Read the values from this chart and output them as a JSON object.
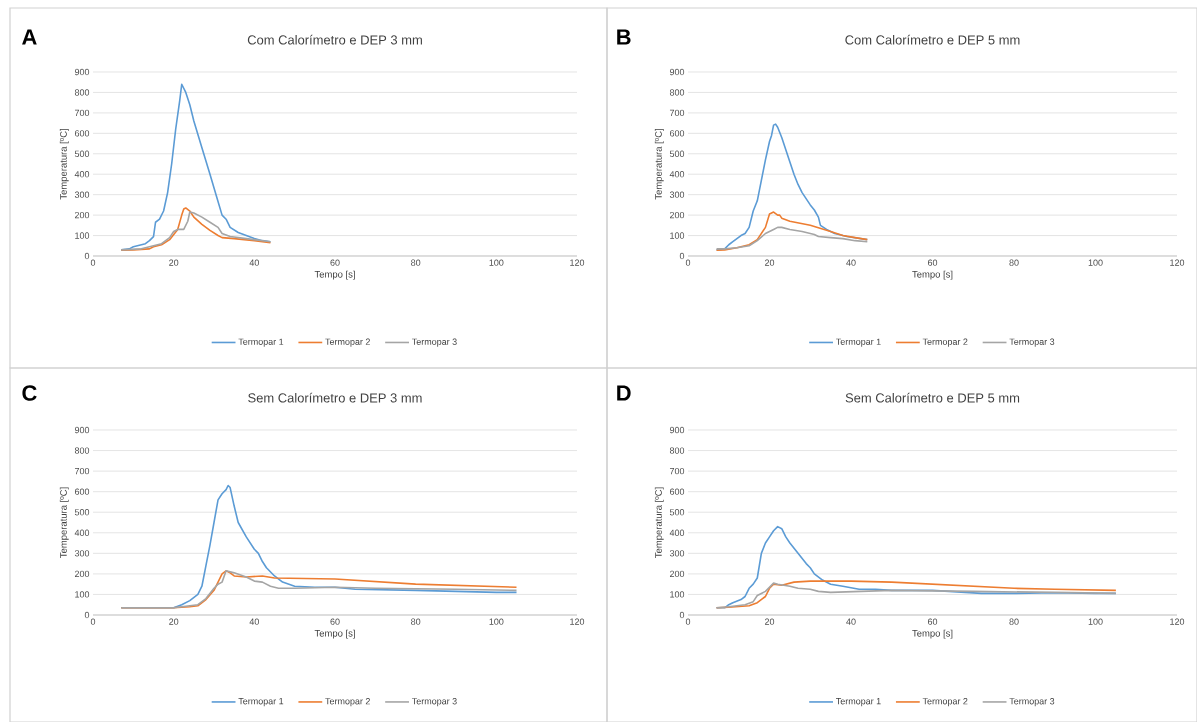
{
  "chart_data": [
    {
      "type": "line",
      "title": "Com Calorímetro e DEP 3 mm",
      "xlabel": "Tempo [s]",
      "ylabel": "Temperatura [ºC]",
      "annotations": [
        "A"
      ],
      "xlim": [
        0,
        120
      ],
      "ylim": [
        0,
        900
      ],
      "xticks": [
        0,
        20,
        40,
        60,
        80,
        100,
        120
      ],
      "yticks": [
        0,
        100,
        200,
        300,
        400,
        500,
        600,
        700,
        800,
        900
      ],
      "grid": "y",
      "legend": "bottom",
      "line_style": "solid",
      "marker": "none",
      "series": [
        {
          "name": "Termopar 1",
          "color": "#5b9bd5",
          "x": [
            7,
            9,
            10,
            12,
            13,
            14,
            15,
            15.5,
            16.5,
            17.5,
            18.5,
            19.5,
            20.5,
            21.5,
            22,
            23,
            24,
            25,
            27,
            29,
            30.5,
            32,
            33,
            34,
            36,
            38,
            40,
            42,
            44
          ],
          "values": [
            30,
            35,
            45,
            55,
            60,
            75,
            95,
            165,
            180,
            220,
            310,
            450,
            620,
            760,
            840,
            800,
            740,
            660,
            530,
            400,
            300,
            200,
            180,
            140,
            115,
            100,
            85,
            75,
            70
          ]
        },
        {
          "name": "Termopar 2",
          "color": "#ed7d31",
          "x": [
            7,
            10,
            14,
            15,
            17,
            19,
            21,
            22,
            22.5,
            23,
            24,
            25,
            27,
            29,
            31,
            32,
            35,
            40,
            44
          ],
          "values": [
            28,
            30,
            35,
            45,
            55,
            80,
            130,
            200,
            230,
            235,
            220,
            190,
            155,
            125,
            100,
            90,
            85,
            75,
            65
          ]
        },
        {
          "name": "Termopar 3",
          "color": "#a5a5a5",
          "x": [
            7,
            12,
            14,
            17,
            19,
            20,
            21,
            22.5,
            23.5,
            24,
            25,
            27,
            29,
            31,
            32,
            34,
            38,
            44
          ],
          "values": [
            30,
            35,
            45,
            60,
            90,
            120,
            130,
            130,
            170,
            215,
            210,
            190,
            165,
            140,
            110,
            95,
            85,
            70
          ]
        }
      ]
    },
    {
      "type": "line",
      "title": "Com Calorímetro e DEP 5 mm",
      "xlabel": "Tempo [s]",
      "ylabel": "Temperatura [ºC]",
      "annotations": [
        "B"
      ],
      "xlim": [
        0,
        120
      ],
      "ylim": [
        0,
        900
      ],
      "xticks": [
        0,
        20,
        40,
        60,
        80,
        100,
        120
      ],
      "yticks": [
        0,
        100,
        200,
        300,
        400,
        500,
        600,
        700,
        800,
        900
      ],
      "grid": "y",
      "legend": "bottom",
      "line_style": "solid",
      "marker": "none",
      "series": [
        {
          "name": "Termopar 1",
          "color": "#5b9bd5",
          "x": [
            7,
            9,
            10,
            11,
            12,
            13,
            14,
            15,
            16,
            17,
            18,
            19,
            20,
            20.5,
            21,
            21.5,
            22,
            23,
            24,
            25,
            26,
            27,
            28,
            29,
            30,
            31,
            32,
            32.5,
            34,
            36,
            39,
            44
          ],
          "values": [
            30,
            35,
            55,
            70,
            85,
            100,
            110,
            140,
            220,
            270,
            370,
            470,
            560,
            590,
            640,
            645,
            630,
            580,
            520,
            460,
            400,
            350,
            310,
            280,
            250,
            225,
            190,
            150,
            130,
            110,
            95,
            80
          ]
        },
        {
          "name": "Termopar 2",
          "color": "#ed7d31",
          "x": [
            7,
            9,
            12,
            15,
            17,
            19,
            20,
            21,
            22,
            22.5,
            23,
            25,
            30,
            35,
            38,
            41,
            44
          ],
          "values": [
            28,
            30,
            40,
            55,
            80,
            140,
            205,
            215,
            200,
            200,
            185,
            170,
            150,
            120,
            100,
            90,
            80
          ]
        },
        {
          "name": "Termopar 3",
          "color": "#a5a5a5",
          "x": [
            7,
            9,
            12,
            15,
            17,
            19,
            21,
            22,
            23,
            25,
            28,
            31,
            32,
            35,
            38,
            41,
            44
          ],
          "values": [
            35,
            35,
            40,
            50,
            75,
            110,
            130,
            140,
            140,
            130,
            120,
            105,
            95,
            90,
            85,
            75,
            70
          ]
        }
      ]
    },
    {
      "type": "line",
      "title": "Sem Calorímetro e DEP 3 mm",
      "xlabel": "Tempo [s]",
      "ylabel": "Temperatura [ºC]",
      "annotations": [
        "C"
      ],
      "xlim": [
        0,
        120
      ],
      "ylim": [
        0,
        900
      ],
      "xticks": [
        0,
        20,
        40,
        60,
        80,
        100,
        120
      ],
      "yticks": [
        0,
        100,
        200,
        300,
        400,
        500,
        600,
        700,
        800,
        900
      ],
      "grid": "y",
      "legend": "bottom",
      "line_style": "solid",
      "marker": "none",
      "series": [
        {
          "name": "Termopar 1",
          "color": "#5b9bd5",
          "x": [
            7,
            20,
            22,
            24,
            26,
            27,
            28,
            29,
            30,
            31,
            32,
            33,
            33.5,
            34,
            35,
            36,
            38,
            40,
            41,
            42,
            43,
            45,
            47,
            50,
            55,
            60,
            65,
            80,
            90,
            100,
            105
          ],
          "values": [
            35,
            35,
            50,
            70,
            100,
            140,
            240,
            340,
            450,
            560,
            590,
            610,
            630,
            620,
            530,
            450,
            380,
            320,
            300,
            260,
            230,
            190,
            160,
            140,
            135,
            135,
            125,
            120,
            115,
            110,
            110
          ]
        },
        {
          "name": "Termopar 2",
          "color": "#ed7d31",
          "x": [
            7,
            20,
            24,
            26,
            28,
            30,
            31,
            32,
            33,
            34,
            35,
            38,
            42,
            45,
            60,
            80,
            105
          ],
          "values": [
            35,
            35,
            40,
            45,
            75,
            120,
            160,
            200,
            215,
            205,
            190,
            185,
            190,
            180,
            175,
            150,
            135
          ]
        },
        {
          "name": "Termopar 3",
          "color": "#a5a5a5",
          "x": [
            7,
            20,
            26,
            28,
            30,
            31,
            32,
            33,
            35,
            38,
            40,
            42,
            44,
            46,
            50,
            60,
            70,
            90,
            105
          ],
          "values": [
            35,
            35,
            50,
            80,
            130,
            150,
            160,
            215,
            205,
            185,
            165,
            160,
            140,
            130,
            130,
            135,
            130,
            125,
            120
          ]
        }
      ]
    },
    {
      "type": "line",
      "title": "Sem Calorímetro e DEP 5 mm",
      "xlabel": "Tempo [s]",
      "ylabel": "Temperatura [ºC]",
      "annotations": [
        "D"
      ],
      "xlim": [
        0,
        120
      ],
      "ylim": [
        0,
        900
      ],
      "xticks": [
        0,
        20,
        40,
        60,
        80,
        100,
        120
      ],
      "yticks": [
        0,
        100,
        200,
        300,
        400,
        500,
        600,
        700,
        800,
        900
      ],
      "grid": "y",
      "legend": "bottom",
      "line_style": "solid",
      "marker": "none",
      "series": [
        {
          "name": "Termopar 1",
          "color": "#5b9bd5",
          "x": [
            7,
            9,
            10,
            11,
            13,
            14,
            15,
            16,
            17,
            18,
            19,
            20,
            21,
            22,
            23,
            24,
            25,
            27,
            29,
            30,
            31,
            33,
            35,
            38,
            42,
            46,
            50,
            60,
            72,
            80,
            90,
            100,
            105
          ],
          "values": [
            35,
            35,
            50,
            60,
            75,
            90,
            130,
            150,
            180,
            300,
            350,
            380,
            410,
            430,
            420,
            380,
            350,
            300,
            250,
            230,
            200,
            170,
            150,
            140,
            125,
            125,
            120,
            120,
            105,
            105,
            108,
            105,
            105
          ]
        },
        {
          "name": "Termopar 2",
          "color": "#ed7d31",
          "x": [
            7,
            10,
            15,
            17,
            19,
            20,
            21,
            23,
            26,
            30,
            40,
            50,
            70,
            80,
            90,
            105
          ],
          "values": [
            35,
            38,
            45,
            60,
            90,
            130,
            150,
            145,
            160,
            165,
            165,
            160,
            140,
            130,
            125,
            120
          ]
        },
        {
          "name": "Termopar 3",
          "color": "#a5a5a5",
          "x": [
            7,
            10,
            14,
            16,
            17,
            18,
            19,
            20,
            21,
            22,
            25,
            27,
            30,
            32,
            35,
            50,
            70,
            90,
            105
          ],
          "values": [
            35,
            40,
            50,
            65,
            95,
            105,
            115,
            135,
            155,
            150,
            140,
            130,
            125,
            115,
            110,
            120,
            115,
            110,
            105
          ]
        }
      ]
    }
  ]
}
